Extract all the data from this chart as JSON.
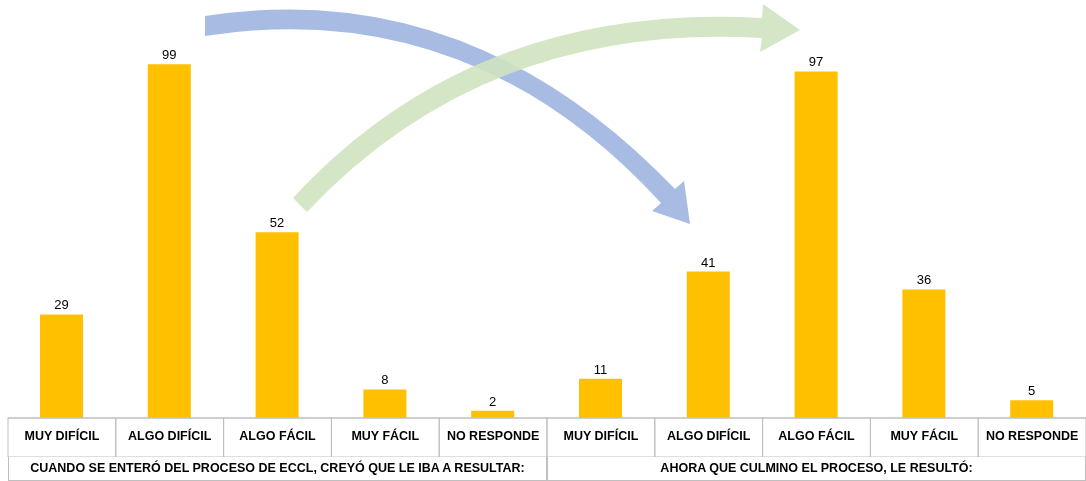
{
  "chart_data": {
    "type": "bar",
    "categories": [
      "MUY DIFÍCIL",
      "ALGO DIFÍCIL",
      "ALGO FÁCIL",
      "MUY FÁCIL",
      "NO RESPONDE",
      "MUY DIFÍCIL",
      "ALGO DIFÍCIL",
      "ALGO FÁCIL",
      "MUY FÁCIL",
      "NO RESPONDE"
    ],
    "values": [
      29,
      99,
      52,
      8,
      2,
      11,
      41,
      97,
      36,
      5
    ],
    "color": "#ffc000",
    "data_labels": true,
    "annotations": [
      "CUANDO SE ENTERÓ DEL PROCESO DE ECCL, CREYÓ QUE LE IBA A RESULTAR:",
      "AHORA QUE CULMINO EL PROCESO, LE RESULTÓ:"
    ]
  }
}
